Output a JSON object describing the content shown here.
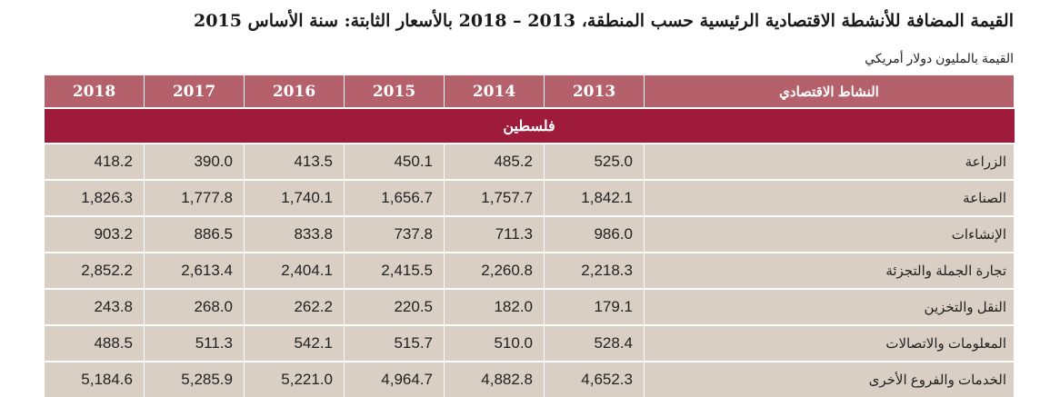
{
  "title": "القيمة المضافة للأنشطة الاقتصادية الرئيسية حسب المنطقة، 2013 – 2018 بالأسعار الثابتة: سنة الأساس 2015",
  "unit_note": "القيمة بالمليون دولار أمريكي",
  "table": {
    "activity_header": "النشاط الاقتصادي",
    "years": [
      "2018",
      "2017",
      "2016",
      "2015",
      "2014",
      "2013"
    ],
    "region": "فلسطين",
    "rows": [
      {
        "activity": "الزراعة",
        "values": [
          "418.2",
          "390.0",
          "413.5",
          "450.1",
          "485.2",
          "525.0"
        ]
      },
      {
        "activity": "الصناعة",
        "values": [
          "1,826.3",
          "1,777.8",
          "1,740.1",
          "1,656.7",
          "1,757.7",
          "1,842.1"
        ]
      },
      {
        "activity": "الإنشاءات",
        "values": [
          "903.2",
          "886.5",
          "833.8",
          "737.8",
          "711.3",
          "986.0"
        ]
      },
      {
        "activity": "تجارة الجملة والتجزئة",
        "values": [
          "2,852.2",
          "2,613.4",
          "2,404.1",
          "2,415.5",
          "2,260.8",
          "2,218.3"
        ]
      },
      {
        "activity": "النقل والتخزين",
        "values": [
          "243.8",
          "268.0",
          "262.2",
          "220.5",
          "182.0",
          "179.1"
        ]
      },
      {
        "activity": "المعلومات والاتصالات",
        "values": [
          "488.5",
          "511.3",
          "542.1",
          "515.7",
          "510.0",
          "528.4"
        ]
      },
      {
        "activity": "الخدمات والفروع الأخرى",
        "values": [
          "5,184.6",
          "5,285.9",
          "5,221.0",
          "4,964.7",
          "4,882.8",
          "4,652.3"
        ]
      }
    ]
  },
  "colors": {
    "header_bg": "#b5616b",
    "region_bg": "#9e1b3c",
    "row_bg": "#d9cfc4"
  }
}
